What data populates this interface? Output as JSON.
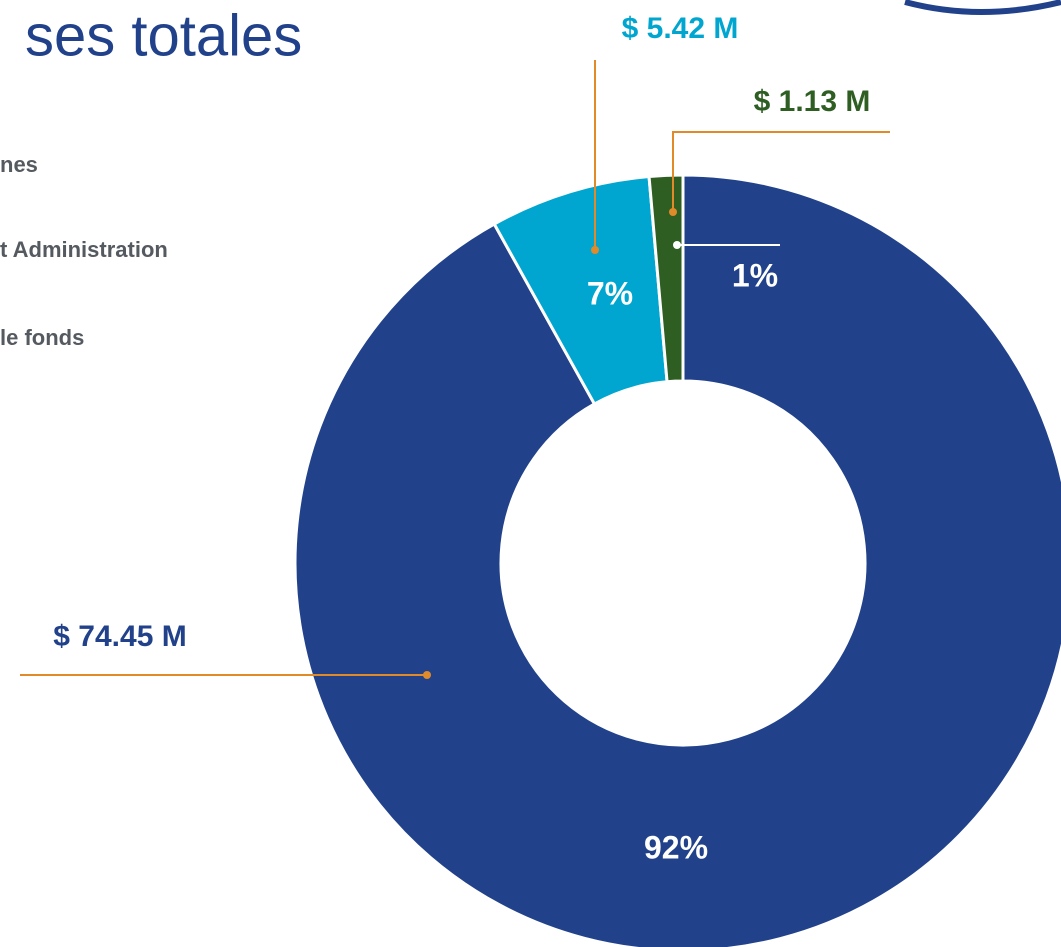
{
  "chart_data": {
    "type": "donut",
    "title": "ses totales",
    "legend": [
      "nes",
      "t Administration",
      "le fonds"
    ],
    "values": [
      74.45,
      5.42,
      1.13
    ],
    "value_labels": [
      "$ 74.45 M",
      "$ 5.42 M",
      "$ 1.13 M"
    ],
    "percent_labels": [
      "92%",
      "7%",
      "1%"
    ],
    "colors": [
      "#21428a",
      "#00a6cf",
      "#2e5e22"
    ]
  }
}
